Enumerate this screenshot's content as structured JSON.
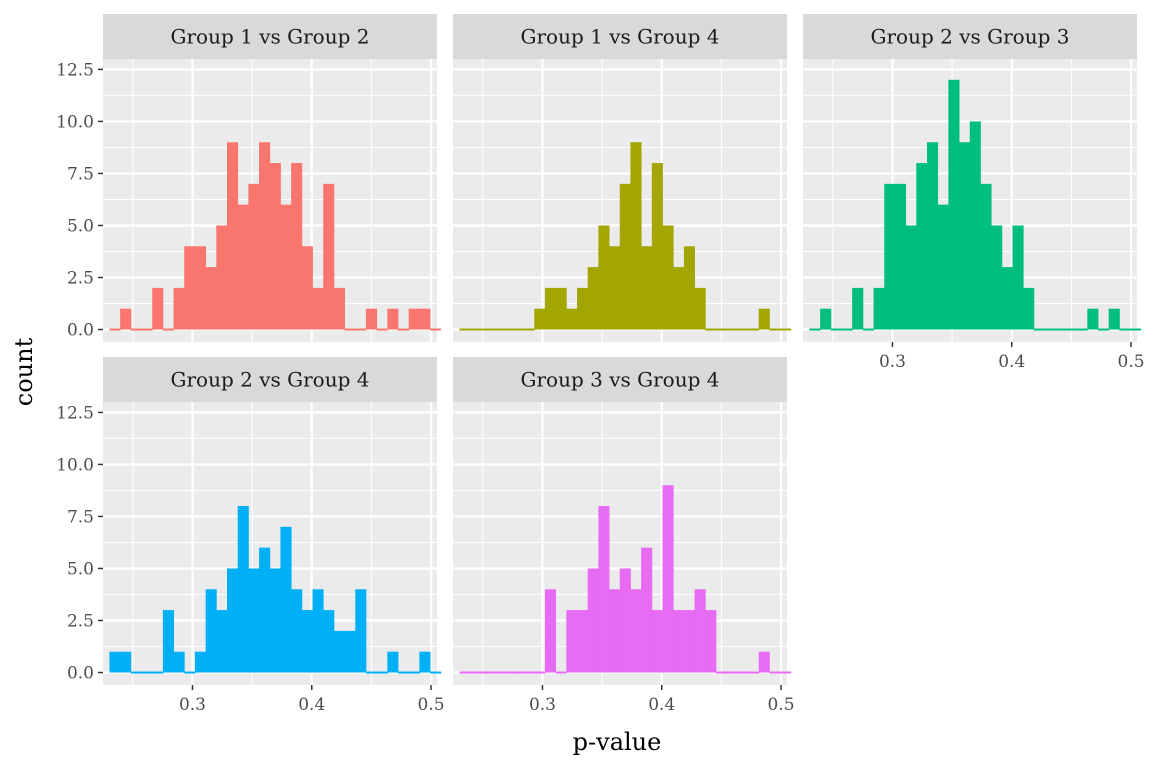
{
  "chart_data": {
    "type": "bar",
    "xlabel": "p-value",
    "ylabel": "count",
    "xlim": [
      0.225,
      0.505
    ],
    "ylim": [
      -0.6,
      13.0
    ],
    "x_ticks": [
      0.3,
      0.4,
      0.5
    ],
    "x_tick_labels": [
      "0.3",
      "0.4",
      "0.5"
    ],
    "y_ticks": [
      0,
      2.5,
      5,
      7.5,
      10,
      12.5
    ],
    "y_tick_labels": [
      "0.0",
      "2.5",
      "5.0",
      "7.5",
      "10.0",
      "12.5"
    ],
    "bin_start": 0.2304,
    "bin_width": 0.00896,
    "facets": [
      {
        "title": "Group 1 vs Group 2",
        "color": "#F8766D",
        "counts": [
          0,
          1,
          0,
          0,
          2,
          0,
          2,
          4,
          4,
          3,
          5,
          9,
          6,
          7,
          9,
          8,
          6,
          8,
          4,
          2,
          7,
          2,
          0,
          0,
          1,
          0,
          1,
          0,
          1,
          1,
          0
        ]
      },
      {
        "title": "Group 1 vs Group 4",
        "color": "#A3A500",
        "counts": [
          0,
          0,
          0,
          0,
          0,
          0,
          0,
          1,
          2,
          2,
          1,
          2,
          3,
          5,
          4,
          7,
          9,
          4,
          8,
          5,
          3,
          4,
          2,
          0,
          0,
          0,
          0,
          0,
          1,
          0,
          0
        ]
      },
      {
        "title": "Group 2 vs Group 3",
        "color": "#00BF7D",
        "counts": [
          0,
          1,
          0,
          0,
          2,
          0,
          2,
          7,
          7,
          5,
          8,
          9,
          6,
          12,
          9,
          10,
          7,
          5,
          3,
          5,
          2,
          0,
          0,
          0,
          0,
          0,
          1,
          0,
          1,
          0,
          0
        ]
      },
      {
        "title": "Group 2 vs Group 4",
        "color": "#00B0F6",
        "counts": [
          1,
          1,
          0,
          0,
          0,
          3,
          1,
          0,
          1,
          4,
          3,
          5,
          8,
          5,
          6,
          5,
          7,
          4,
          3,
          4,
          3,
          2,
          2,
          4,
          0,
          0,
          1,
          0,
          0,
          1,
          0
        ]
      },
      {
        "title": "Group 3 vs Group 4",
        "color": "#E76BF3",
        "counts": [
          0,
          0,
          0,
          0,
          0,
          0,
          0,
          0,
          4,
          0,
          3,
          3,
          5,
          8,
          4,
          5,
          4,
          6,
          3,
          9,
          3,
          3,
          4,
          3,
          0,
          0,
          0,
          0,
          1,
          0,
          0
        ]
      }
    ]
  }
}
